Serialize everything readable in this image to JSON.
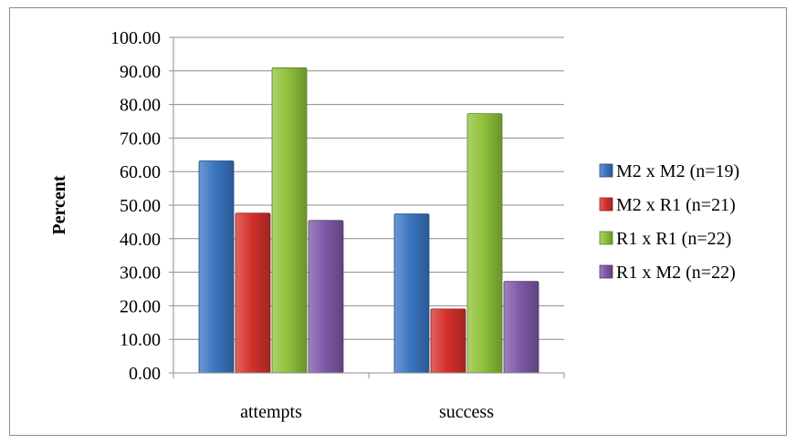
{
  "chart_data": {
    "type": "bar",
    "categories": [
      "attempts",
      "success"
    ],
    "series": [
      {
        "name": "M2 x M2 (n=19)",
        "values": [
          63.16,
          47.37
        ],
        "color": "#3b76c4"
      },
      {
        "name": "M2 x R1 (n=21)",
        "values": [
          47.62,
          19.05
        ],
        "color": "#d6312c"
      },
      {
        "name": "R1 x R1 (n=22)",
        "values": [
          90.91,
          77.27
        ],
        "color": "#8fc23a"
      },
      {
        "name": "R1 x M2 (n=22)",
        "values": [
          45.45,
          27.27
        ],
        "color": "#7e5aa8"
      }
    ],
    "title": "",
    "xlabel": "",
    "ylabel": "Percent",
    "ylim": [
      0,
      100
    ],
    "yticks": [
      "0.00",
      "10.00",
      "20.00",
      "30.00",
      "40.00",
      "50.00",
      "60.00",
      "70.00",
      "80.00",
      "90.00",
      "100.00"
    ],
    "grid": true,
    "legend_position": "right"
  }
}
